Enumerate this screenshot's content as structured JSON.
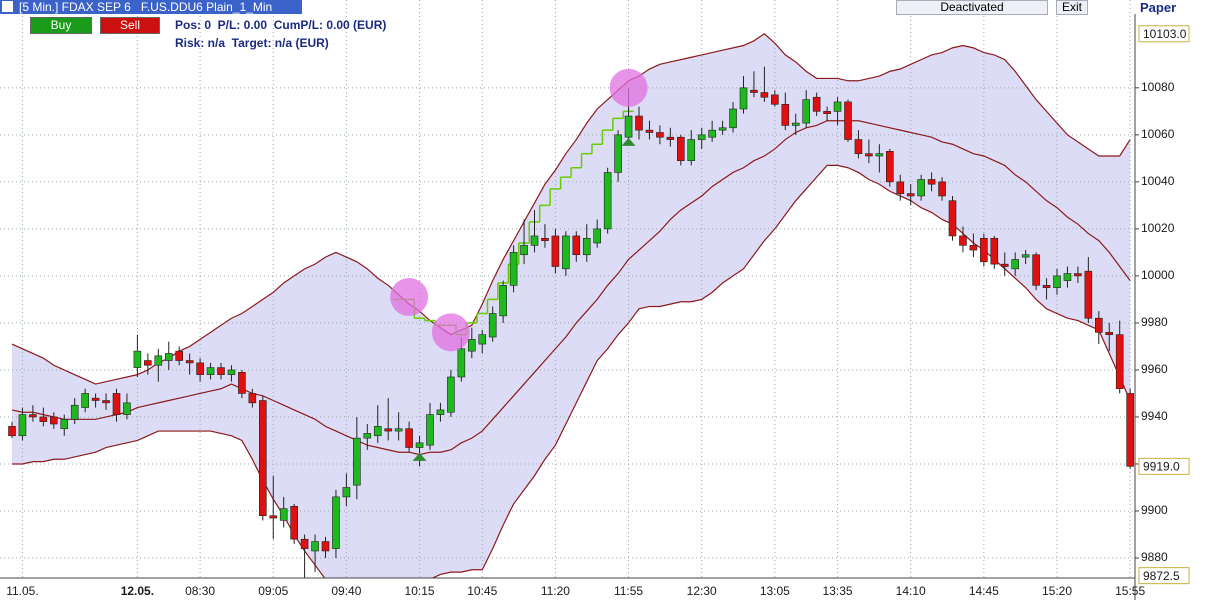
{
  "header": {
    "title": "[5 Min.] FDAX SEP 6   F.US.DDU6 Plain_1_Min",
    "buy": "Buy",
    "sell": "Sell",
    "position": "Pos: 0  P/L: 0.00  CumP/L: 0.00 (EUR)",
    "risk": "Risk: n/a  Target: n/a (EUR)",
    "status": "Deactivated",
    "exit": "Exit",
    "account": "Paper"
  },
  "chart_data": {
    "type": "candlestick",
    "categories": [
      null,
      "11.05.",
      null,
      null,
      null,
      null,
      null,
      null,
      null,
      null,
      null,
      null,
      "12.05.",
      null,
      null,
      null,
      null,
      null,
      "08:30",
      null,
      null,
      null,
      null,
      null,
      null,
      "09:05",
      null,
      null,
      null,
      null,
      null,
      null,
      "09:40",
      null,
      null,
      null,
      null,
      null,
      null,
      "10:15",
      null,
      null,
      null,
      null,
      null,
      "10:45",
      null,
      null,
      null,
      null,
      null,
      null,
      "11:20",
      null,
      null,
      null,
      null,
      null,
      null,
      "11:55",
      null,
      null,
      null,
      null,
      null,
      null,
      "12:30",
      null,
      null,
      null,
      null,
      null,
      null,
      "13:05",
      null,
      null,
      null,
      null,
      null,
      "13:35",
      null,
      null,
      null,
      null,
      null,
      null,
      "14:10",
      null,
      null,
      null,
      null,
      null,
      null,
      "14:45",
      null,
      null,
      null,
      null,
      null,
      null,
      "15:20",
      null,
      null,
      null,
      null,
      null,
      null,
      "15:55"
    ],
    "open": [
      9936,
      9932,
      9941,
      9940,
      9940,
      9935,
      9939,
      9944,
      9948,
      9947,
      9950,
      9941,
      9961,
      9964,
      9962,
      9964,
      9968,
      9964,
      9963,
      9958,
      9961,
      9958,
      9959,
      9950,
      9947,
      9898,
      9896,
      9902,
      9888,
      9883,
      9887,
      9884,
      9906,
      9911,
      9931,
      9932,
      9935,
      9934,
      9935,
      9927,
      9928,
      9941,
      9942,
      9957,
      9968,
      9971,
      9974,
      9983,
      9996,
      10009,
      10013,
      10016,
      10017,
      10003,
      10017,
      10009,
      10014,
      10020,
      10044,
      10059,
      10068,
      10062,
      10061,
      10059,
      10059,
      10049,
      10058,
      10059,
      10062,
      10063,
      10071,
      10079,
      10078,
      10077,
      10073,
      10064,
      10065,
      10076,
      10070,
      10070,
      10074,
      10058,
      10052,
      10051,
      10053,
      10040,
      10035,
      10034,
      10041,
      10040,
      10032,
      10017,
      10013,
      10016,
      10016,
      10005,
      10003,
      10008,
      10009,
      9996,
      9995,
      9998,
      10001,
      10002,
      9982,
      9976,
      9975,
      9950
    ],
    "high": [
      9938,
      9944,
      9945,
      9944,
      9942,
      9941,
      9948,
      9952,
      9950,
      9950,
      9952,
      9950,
      9975,
      9967,
      9969,
      9972,
      9970,
      9967,
      9965,
      9963,
      9963,
      9962,
      9960,
      9952,
      9949,
      9915,
      9906,
      9903,
      9890,
      9890,
      9889,
      9909,
      9916,
      9940,
      9937,
      9945,
      9948,
      9942,
      9938,
      9932,
      9946,
      9946,
      9960,
      9974,
      9978,
      9977,
      9987,
      9998,
      10013,
      10024,
      10028,
      10022,
      10020,
      10019,
      10019,
      10022,
      10024,
      10046,
      10062,
      10080,
      10072,
      10066,
      10064,
      10063,
      10060,
      10062,
      10063,
      10066,
      10066,
      10074,
      10085,
      10087,
      10089,
      10079,
      10078,
      10069,
      10079,
      10078,
      10072,
      10076,
      10075,
      10062,
      10058,
      10056,
      10054,
      10043,
      10039,
      10043,
      10044,
      10042,
      10034,
      10021,
      10018,
      10018,
      10017,
      10010,
      10010,
      10011,
      10010,
      9999,
      10003,
      10004,
      10004,
      10008,
      9985,
      9980,
      9981,
      9952
    ],
    "low": [
      9931,
      9930,
      9938,
      9936,
      9935,
      9932,
      9937,
      9942,
      9944,
      9943,
      9938,
      9939,
      9957,
      9958,
      9955,
      9960,
      9962,
      9958,
      9955,
      9956,
      9956,
      9955,
      9948,
      9944,
      9896,
      9888,
      9893,
      9886,
      9871,
      9874,
      9880,
      9880,
      9902,
      9905,
      9926,
      9929,
      9930,
      9930,
      9925,
      9919,
      9926,
      9938,
      9940,
      9955,
      9965,
      9967,
      9972,
      9980,
      9993,
      10005,
      10010,
      10012,
      10001,
      10000,
      10006,
      10006,
      10012,
      10018,
      10040,
      10056,
      10058,
      10058,
      10056,
      10055,
      10047,
      10047,
      10054,
      10057,
      10060,
      10061,
      10069,
      10076,
      10074,
      10072,
      10062,
      10060,
      10063,
      10068,
      10066,
      10064,
      10057,
      10050,
      10048,
      10044,
      10038,
      10032,
      10030,
      10032,
      10036,
      10032,
      10015,
      10010,
      10008,
      10004,
      10003,
      10000,
      10000,
      10005,
      9994,
      9990,
      9992,
      9995,
      9997,
      9980,
      9971,
      9968,
      9950,
      9918
    ],
    "close": [
      9932,
      9941,
      9940,
      9938,
      9937,
      9939,
      9945,
      9950,
      9947,
      9946,
      9941,
      9946,
      9968,
      9962,
      9966,
      9967,
      9964,
      9963,
      9958,
      9961,
      9958,
      9960,
      9950,
      9946,
      9898,
      9897,
      9901,
      9888,
      9884,
      9887,
      9883,
      9906,
      9910,
      9931,
      9933,
      9936,
      9934,
      9935,
      9927,
      9929,
      9941,
      9943,
      9957,
      9969,
      9973,
      9975,
      9984,
      9996,
      10010,
      10013,
      10017,
      10015,
      10004,
      10017,
      10009,
      10016,
      10020,
      10044,
      10060,
      10068,
      10062,
      10061,
      10059,
      10058,
      10049,
      10058,
      10060,
      10062,
      10063,
      10071,
      10080,
      10078,
      10076,
      10073,
      10064,
      10065,
      10075,
      10070,
      10069,
      10074,
      10058,
      10052,
      10051,
      10052,
      10040,
      10035,
      10034,
      10041,
      10039,
      10034,
      10017,
      10013,
      10011,
      10006,
      10005,
      10004,
      10007,
      10009,
      9996,
      9995,
      10000,
      10001,
      10000,
      9982,
      9976,
      9975,
      9952,
      9919
    ],
    "up_color": "#1fb81f",
    "down_color": "#e01010",
    "bands": {
      "color": "#8b1a1a",
      "fill": "#dcdcf6",
      "upper": [
        9971,
        9969,
        9967,
        9965,
        9962,
        9960,
        9958,
        9956,
        9954,
        9955,
        9956,
        9957,
        9958,
        9960,
        9963,
        9965,
        9968,
        9970,
        9973,
        9976,
        9979,
        9982,
        9984,
        9987,
        9990,
        9993,
        9997,
        10000,
        10003,
        10005,
        10008,
        10010,
        10008,
        10006,
        10003,
        9999,
        9996,
        9992,
        9988,
        9985,
        9981,
        9978,
        9975,
        9977,
        9979,
        9988,
        9998,
        10007,
        10015,
        10023,
        10031,
        10039,
        10045,
        10052,
        10058,
        10065,
        10071,
        10075,
        10079,
        10083,
        10085,
        10088,
        10090,
        10091,
        10092,
        10093,
        10094,
        10095,
        10096,
        10097,
        10098,
        10100,
        10103,
        10099,
        10094,
        10091,
        10087,
        10084,
        10084,
        10084,
        10083,
        10083,
        10084,
        10085,
        10087,
        10088,
        10090,
        10092,
        10094,
        10095,
        10097,
        10098,
        10097,
        10095,
        10094,
        10092,
        10087,
        10081,
        10075,
        10070,
        10065,
        10060,
        10057,
        10054,
        10051,
        10051,
        10051,
        10058
      ],
      "middle": [
        9943,
        9942,
        9942,
        9941,
        9940,
        9939,
        9939,
        9939,
        9939,
        9940,
        9941,
        9942,
        9944,
        9945,
        9946,
        9947,
        9948,
        9949,
        9950,
        9951,
        9952,
        9954,
        9952,
        9950,
        9949,
        9947,
        9945,
        9943,
        9941,
        9939,
        9936,
        9934,
        9932,
        9930,
        9928,
        9927,
        9926,
        9925,
        9925,
        9924,
        9925,
        9925,
        9926,
        9929,
        9931,
        9934,
        9939,
        9944,
        9949,
        9954,
        9959,
        9964,
        9969,
        9974,
        9980,
        9985,
        9990,
        9996,
        10001,
        10007,
        10011,
        10015,
        10019,
        10024,
        10028,
        10031,
        10034,
        10038,
        10041,
        10044,
        10046,
        10049,
        10051,
        10054,
        10058,
        10061,
        10063,
        10064,
        10066,
        10066,
        10066,
        10066,
        10065,
        10064,
        10063,
        10062,
        10061,
        10060,
        10059,
        10057,
        10056,
        10054,
        10052,
        10051,
        10049,
        10047,
        10043,
        10040,
        10036,
        10032,
        10029,
        10025,
        10022,
        10018,
        10015,
        10010,
        10004,
        9998
      ],
      "lower": [
        9920,
        9920,
        9921,
        9921,
        9922,
        9922,
        9923,
        9924,
        9925,
        9927,
        9928,
        9929,
        9930,
        9932,
        9934,
        9934,
        9934,
        9934,
        9934,
        9934,
        9933,
        9932,
        9930,
        9922,
        9913,
        9905,
        9898,
        9890,
        9883,
        9877,
        9871,
        9866,
        9865,
        9863,
        9862,
        9863,
        9864,
        9865,
        9866,
        9868,
        9871,
        9873,
        9874,
        9874,
        9875,
        9875,
        9884,
        9894,
        9903,
        9909,
        9915,
        9922,
        9928,
        9937,
        9946,
        9955,
        9964,
        9969,
        9975,
        9980,
        9986,
        9987,
        9987,
        9988,
        9989,
        9989,
        9990,
        9993,
        9997,
        10000,
        10003,
        10009,
        10015,
        10020,
        10026,
        10032,
        10037,
        10042,
        10047,
        10047,
        10046,
        10044,
        10041,
        10039,
        10036,
        10034,
        10032,
        10029,
        10027,
        10024,
        10022,
        10018,
        10014,
        10011,
        10007,
        10003,
        9999,
        9995,
        9990,
        9986,
        9984,
        9982,
        9981,
        9979,
        9977,
        9967,
        9957,
        9947
      ]
    },
    "stop": {
      "color": "#66cc00",
      "values": [
        null,
        null,
        null,
        null,
        null,
        null,
        null,
        null,
        null,
        null,
        null,
        null,
        null,
        null,
        null,
        null,
        null,
        null,
        null,
        null,
        null,
        null,
        null,
        null,
        null,
        null,
        null,
        null,
        null,
        null,
        null,
        null,
        null,
        null,
        null,
        null,
        null,
        9990,
        9990,
        9982,
        9981,
        9979,
        9979,
        9975,
        9980,
        9984,
        9990,
        9997,
        10005,
        10014,
        10023,
        10030,
        10037,
        10042,
        10046,
        10052,
        10056,
        10062,
        10067,
        10070,
        null,
        null,
        null,
        null,
        null,
        null,
        null,
        null,
        null,
        null,
        null,
        null,
        null,
        null,
        null,
        null,
        null,
        null,
        null,
        null,
        null,
        null,
        null,
        null,
        null,
        null,
        null,
        null,
        null,
        null,
        null,
        null,
        null,
        null,
        null,
        null,
        null,
        null,
        null,
        null,
        null,
        null,
        null,
        null,
        null,
        null,
        null,
        null
      ]
    },
    "signals": {
      "color": "#e070e0",
      "values": [
        null,
        null,
        null,
        null,
        null,
        null,
        null,
        null,
        null,
        null,
        null,
        null,
        null,
        null,
        null,
        null,
        null,
        null,
        null,
        null,
        null,
        null,
        null,
        null,
        null,
        null,
        null,
        null,
        null,
        null,
        null,
        null,
        null,
        null,
        null,
        null,
        null,
        null,
        9991,
        null,
        null,
        null,
        9976,
        null,
        null,
        null,
        null,
        null,
        null,
        null,
        null,
        null,
        null,
        null,
        null,
        null,
        null,
        null,
        null,
        10080,
        null,
        null,
        null,
        null,
        null,
        null,
        null,
        null,
        null,
        null,
        null,
        null,
        null,
        null,
        null,
        null,
        null,
        null,
        null,
        null,
        null,
        null,
        null,
        null,
        null,
        null,
        null,
        null,
        null,
        null,
        null,
        null,
        null,
        null,
        null,
        null,
        null,
        null,
        null,
        null,
        null,
        null,
        null,
        null,
        null,
        null,
        null,
        null
      ]
    },
    "entries": {
      "color": "#2e8b2e",
      "values": [
        null,
        null,
        null,
        null,
        null,
        null,
        null,
        null,
        null,
        null,
        null,
        null,
        null,
        null,
        null,
        null,
        null,
        null,
        null,
        null,
        null,
        null,
        null,
        null,
        null,
        null,
        null,
        null,
        null,
        null,
        null,
        null,
        null,
        null,
        null,
        null,
        null,
        null,
        null,
        9923,
        null,
        null,
        null,
        null,
        null,
        null,
        null,
        null,
        null,
        null,
        null,
        null,
        null,
        null,
        null,
        null,
        null,
        null,
        null,
        10057,
        null,
        null,
        null,
        null,
        null,
        null,
        null,
        null,
        null,
        null,
        null,
        null,
        null,
        null,
        null,
        null,
        null,
        null,
        null,
        null,
        null,
        null,
        null,
        null,
        null,
        null,
        null,
        null,
        null,
        null,
        null,
        null,
        null,
        null,
        null,
        null,
        null,
        null,
        null,
        null,
        null,
        null,
        null,
        null,
        null,
        null,
        null,
        null
      ]
    },
    "ylim": [
      9871.5,
      10108
    ],
    "yticks": [
      9880,
      9900,
      9920,
      9940,
      9960,
      9980,
      10000,
      10020,
      10040,
      10060,
      10080
    ],
    "price_labels": [
      {
        "value": 10103.0,
        "label": "10103.0"
      },
      {
        "value": 9919.0,
        "label": "9919.0"
      },
      {
        "value": 9872.5,
        "label": "9872.5"
      }
    ],
    "grid": true
  }
}
